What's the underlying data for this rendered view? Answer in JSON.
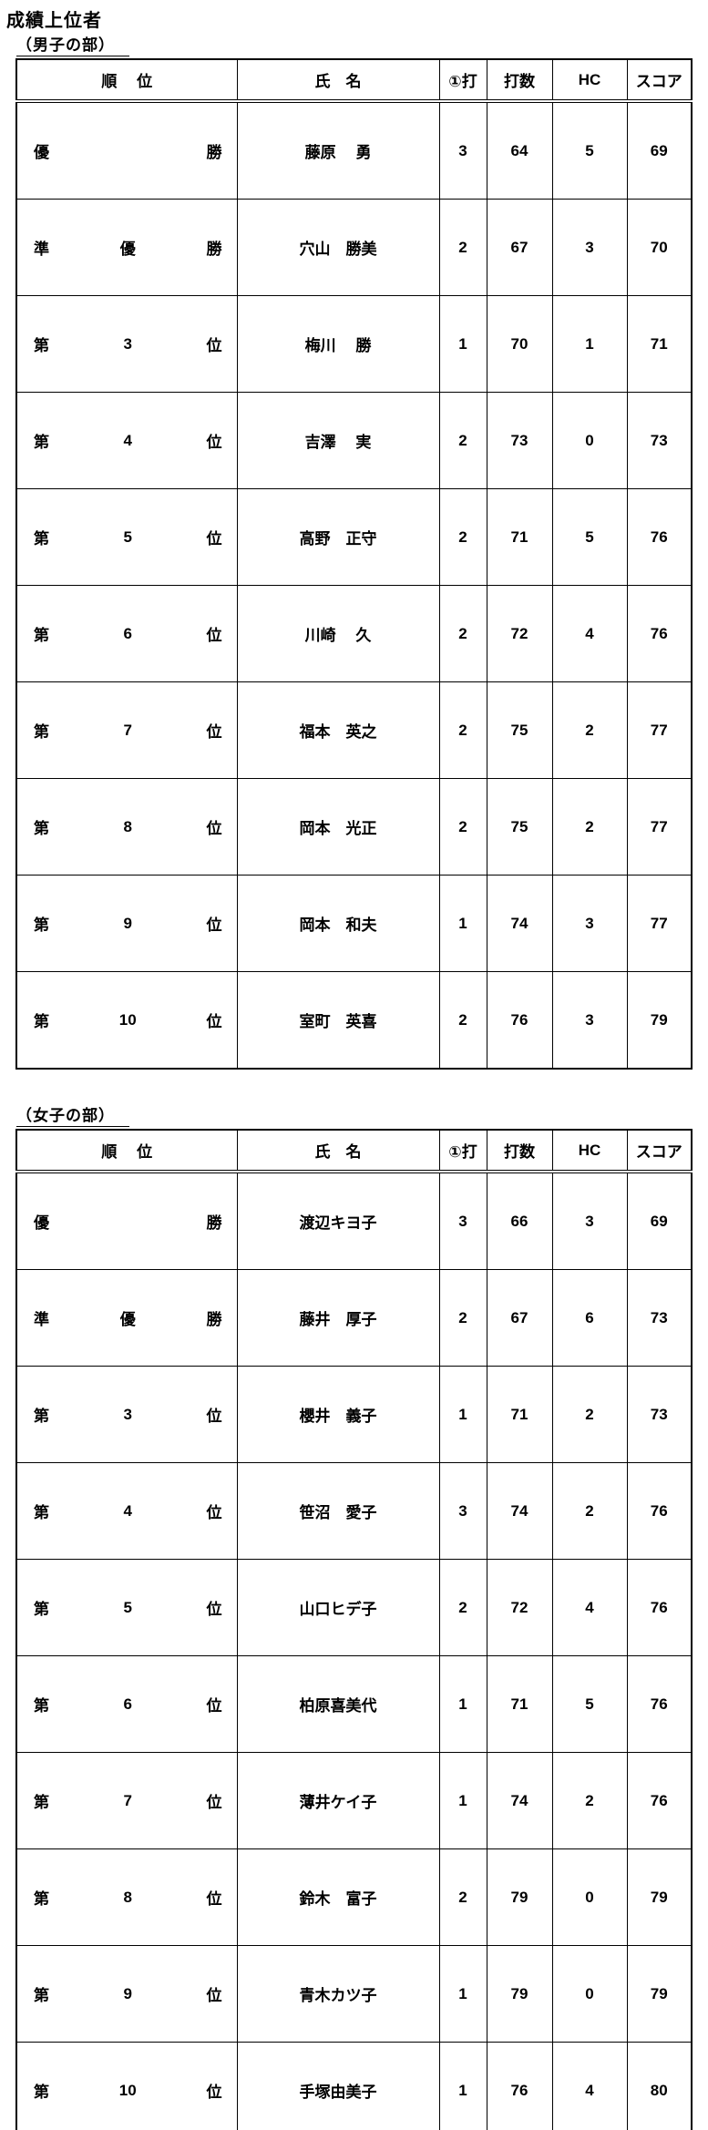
{
  "page": {
    "title": "成績上位者"
  },
  "colors": {
    "text": "#000000",
    "background": "#ffffff",
    "border": "#000000"
  },
  "tables": [
    {
      "section_label": "（男子の部）",
      "headers": {
        "rank": "順　 位",
        "name": "氏　名",
        "first_stroke": "①打",
        "strokes": "打数",
        "hc": "HC",
        "score": "スコア"
      },
      "rows": [
        {
          "rank": [
            "優",
            "",
            "勝"
          ],
          "name": "藤原　 勇",
          "first_stroke": "3",
          "strokes": "64",
          "hc": "5",
          "score": "69"
        },
        {
          "rank": [
            "準",
            "優",
            "勝"
          ],
          "name": "穴山　勝美",
          "first_stroke": "2",
          "strokes": "67",
          "hc": "3",
          "score": "70"
        },
        {
          "rank": [
            "第",
            "3",
            "位"
          ],
          "name": "梅川　 勝",
          "first_stroke": "1",
          "strokes": "70",
          "hc": "1",
          "score": "71"
        },
        {
          "rank": [
            "第",
            "4",
            "位"
          ],
          "name": "吉澤　 実",
          "first_stroke": "2",
          "strokes": "73",
          "hc": "0",
          "score": "73"
        },
        {
          "rank": [
            "第",
            "5",
            "位"
          ],
          "name": "高野　正守",
          "first_stroke": "2",
          "strokes": "71",
          "hc": "5",
          "score": "76"
        },
        {
          "rank": [
            "第",
            "6",
            "位"
          ],
          "name": "川崎　 久",
          "first_stroke": "2",
          "strokes": "72",
          "hc": "4",
          "score": "76"
        },
        {
          "rank": [
            "第",
            "7",
            "位"
          ],
          "name": "福本　英之",
          "first_stroke": "2",
          "strokes": "75",
          "hc": "2",
          "score": "77"
        },
        {
          "rank": [
            "第",
            "8",
            "位"
          ],
          "name": "岡本　光正",
          "first_stroke": "2",
          "strokes": "75",
          "hc": "2",
          "score": "77"
        },
        {
          "rank": [
            "第",
            "9",
            "位"
          ],
          "name": "岡本　和夫",
          "first_stroke": "1",
          "strokes": "74",
          "hc": "3",
          "score": "77"
        },
        {
          "rank": [
            "第",
            "10",
            "位"
          ],
          "name": "室町　英喜",
          "first_stroke": "2",
          "strokes": "76",
          "hc": "3",
          "score": "79"
        }
      ]
    },
    {
      "section_label": "（女子の部）",
      "headers": {
        "rank": "順　 位",
        "name": "氏　名",
        "first_stroke": "①打",
        "strokes": "打数",
        "hc": "HC",
        "score": "スコア"
      },
      "rows": [
        {
          "rank": [
            "優",
            "",
            "勝"
          ],
          "name": "渡辺キヨ子",
          "first_stroke": "3",
          "strokes": "66",
          "hc": "3",
          "score": "69"
        },
        {
          "rank": [
            "準",
            "優",
            "勝"
          ],
          "name": "藤井　厚子",
          "first_stroke": "2",
          "strokes": "67",
          "hc": "6",
          "score": "73"
        },
        {
          "rank": [
            "第",
            "3",
            "位"
          ],
          "name": "櫻井　義子",
          "first_stroke": "1",
          "strokes": "71",
          "hc": "2",
          "score": "73"
        },
        {
          "rank": [
            "第",
            "4",
            "位"
          ],
          "name": "笹沼　愛子",
          "first_stroke": "3",
          "strokes": "74",
          "hc": "2",
          "score": "76"
        },
        {
          "rank": [
            "第",
            "5",
            "位"
          ],
          "name": "山口ヒデ子",
          "first_stroke": "2",
          "strokes": "72",
          "hc": "4",
          "score": "76"
        },
        {
          "rank": [
            "第",
            "6",
            "位"
          ],
          "name": "柏原喜美代",
          "first_stroke": "1",
          "strokes": "71",
          "hc": "5",
          "score": "76"
        },
        {
          "rank": [
            "第",
            "7",
            "位"
          ],
          "name": "薄井ケイ子",
          "first_stroke": "1",
          "strokes": "74",
          "hc": "2",
          "score": "76"
        },
        {
          "rank": [
            "第",
            "8",
            "位"
          ],
          "name": "鈴木　富子",
          "first_stroke": "2",
          "strokes": "79",
          "hc": "0",
          "score": "79"
        },
        {
          "rank": [
            "第",
            "9",
            "位"
          ],
          "name": "青木カツ子",
          "first_stroke": "1",
          "strokes": "79",
          "hc": "0",
          "score": "79"
        },
        {
          "rank": [
            "第",
            "10",
            "位"
          ],
          "name": "手塚由美子",
          "first_stroke": "1",
          "strokes": "76",
          "hc": "4",
          "score": "80"
        }
      ]
    }
  ]
}
